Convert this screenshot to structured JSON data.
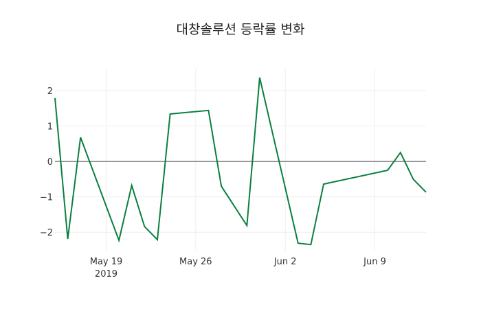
{
  "title": "대창솔루션 등락률 변화",
  "colors": {
    "line": "#0a7f3f",
    "zero_line": "#444444",
    "grid": "#eeeeee"
  },
  "chart_data": {
    "type": "line",
    "title": "대창솔루션 등락률 변화",
    "xlabel": "",
    "ylabel": "",
    "grid": true,
    "legend": false,
    "ylim": [
      -2.52,
      2.62
    ],
    "xlim": [
      "2019-05-15",
      "2019-06-13"
    ],
    "yticks": [
      -2,
      -1,
      0,
      1,
      2
    ],
    "ytick_labels": [
      "−2",
      "−1",
      "0",
      "1",
      "2"
    ],
    "xticks": [
      "2019-05-19",
      "2019-05-26",
      "2019-06-02",
      "2019-06-09"
    ],
    "xtick_labels": [
      "May 19",
      "May 26",
      "Jun 2",
      "Jun 9"
    ],
    "xtick_sublabel": "2019",
    "series": [
      {
        "name": "등락률",
        "x": [
          "2019-05-15",
          "2019-05-16",
          "2019-05-17",
          "2019-05-20",
          "2019-05-21",
          "2019-05-22",
          "2019-05-23",
          "2019-05-24",
          "2019-05-27",
          "2019-05-28",
          "2019-05-30",
          "2019-05-31",
          "2019-06-03",
          "2019-06-04",
          "2019-06-05",
          "2019-06-10",
          "2019-06-11",
          "2019-06-12",
          "2019-06-13"
        ],
        "values": [
          1.79,
          -2.19,
          0.68,
          -2.23,
          -0.68,
          -1.84,
          -2.21,
          1.34,
          1.44,
          -0.7,
          -1.81,
          2.37,
          -2.31,
          -2.35,
          -0.64,
          -0.25,
          0.25,
          -0.5,
          -0.87
        ]
      }
    ]
  }
}
